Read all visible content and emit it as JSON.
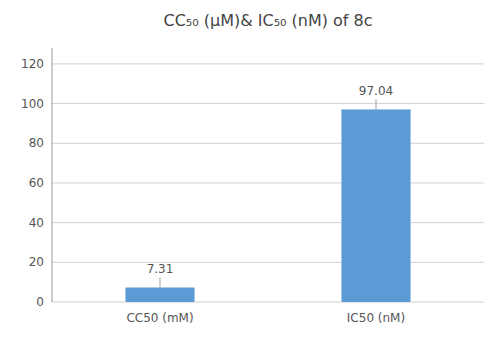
{
  "chart_data": {
    "type": "bar",
    "title": "CC₅₀ (μM)& IC₅₀ (nM) of 8c",
    "categories": [
      "CC50 (mM)",
      "IC50 (nM)"
    ],
    "values": [
      7.31,
      97.04
    ],
    "color": "#5B9BD5",
    "ylim": [
      0,
      128
    ],
    "yticks": [
      0,
      20,
      40,
      60,
      80,
      100,
      120
    ],
    "grid": true,
    "data_labels": true
  }
}
